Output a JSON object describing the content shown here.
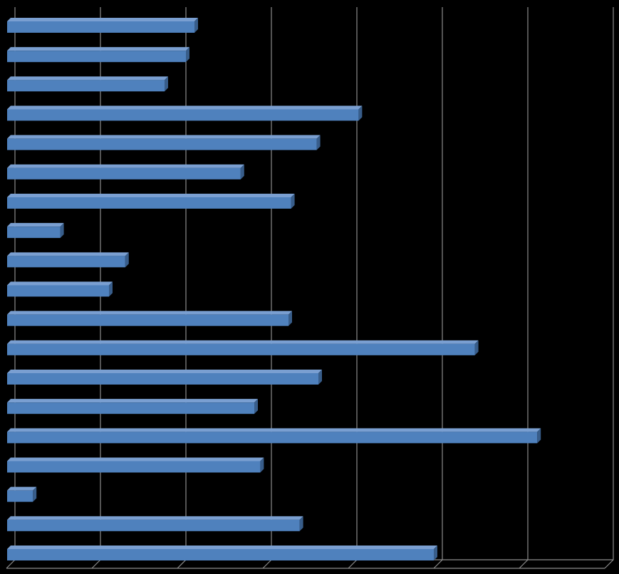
{
  "chart_data": {
    "type": "bar",
    "orientation": "horizontal",
    "values": [
      2.2,
      2.1,
      1.85,
      4.12,
      3.63,
      2.74,
      3.33,
      0.63,
      1.39,
      1.2,
      3.3,
      5.48,
      3.65,
      2.9,
      6.21,
      2.97,
      0.31,
      3.43,
      5.0
    ],
    "color": "#4f81bd",
    "xlim": [
      0,
      7
    ],
    "xticks": [
      0,
      1,
      2,
      3,
      4,
      5,
      6,
      7
    ],
    "grid": true
  }
}
